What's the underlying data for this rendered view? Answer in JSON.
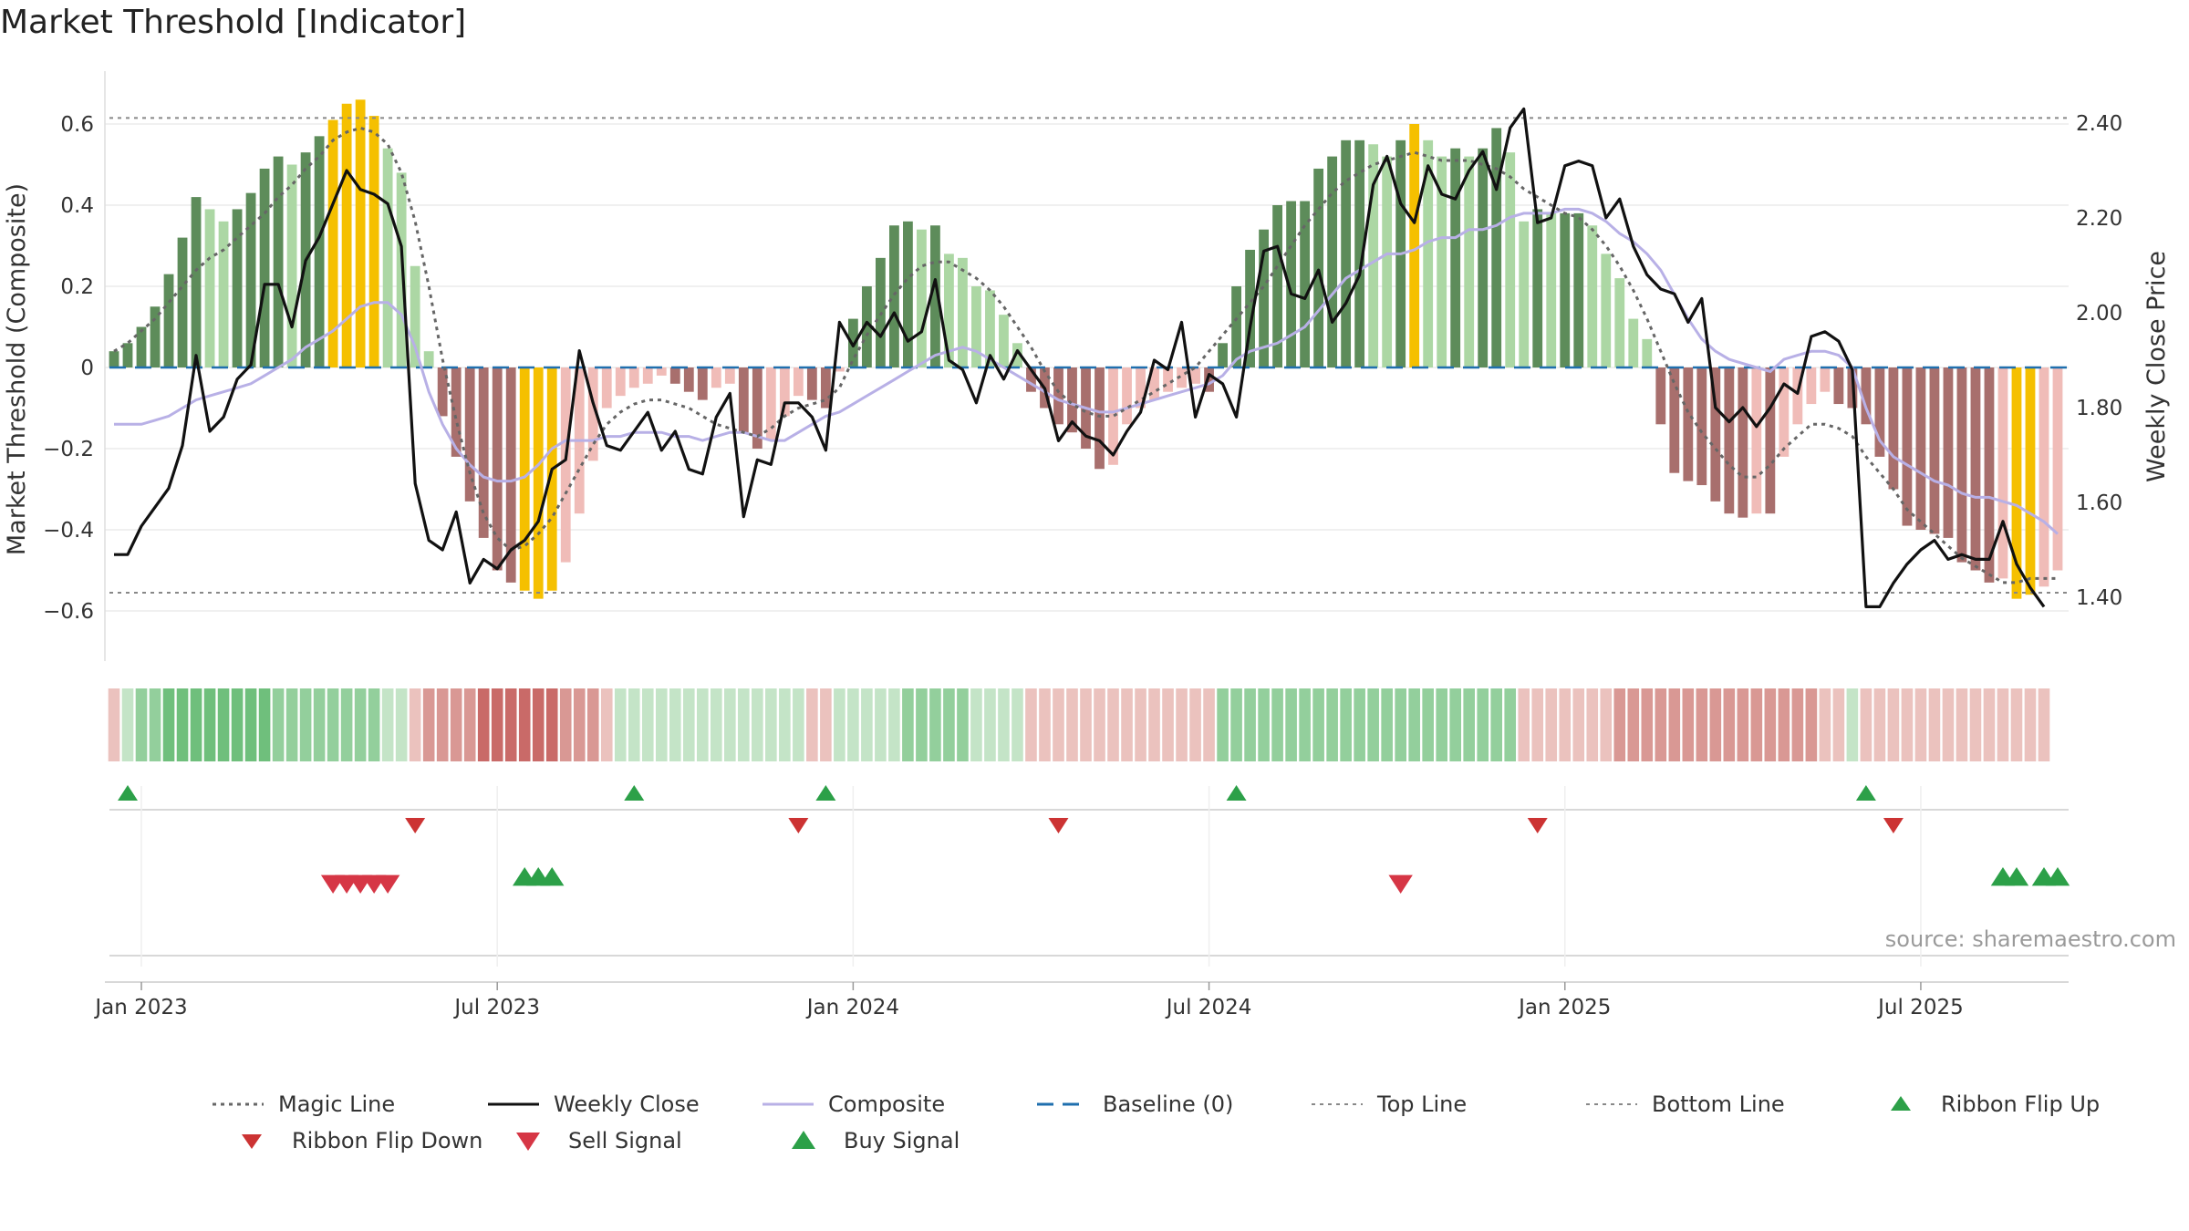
{
  "title": "Market Threshold [Indicator]",
  "source": "source: sharemaestro.com",
  "colors": {
    "up_dark": "#5d8c5a",
    "up_light": "#acd7a4",
    "down_dark": "#a86f6d",
    "down_light": "#f0bcb8",
    "extreme": "#f5c000",
    "weekly_close": "#111111",
    "composite": "#b8b0e6",
    "magic": "#666666",
    "baseline": "#1f6fae",
    "guide": "#888888",
    "signal_green": "#2ca048",
    "signal_red": "#d63645"
  },
  "legend": [
    {
      "label": "Magic Line",
      "icon": "dotted-line"
    },
    {
      "label": "Weekly Close",
      "icon": "solid-line"
    },
    {
      "label": "Composite",
      "icon": "solid-line-light"
    },
    {
      "label": "Baseline (0)",
      "icon": "dashed-line"
    },
    {
      "label": "Top Line",
      "icon": "dotted-line-light"
    },
    {
      "label": "Bottom Line",
      "icon": "dotted-line-light"
    },
    {
      "label": "Ribbon Flip Up",
      "icon": "triangle-up"
    },
    {
      "label": "Ribbon Flip Down",
      "icon": "triangle-down"
    },
    {
      "label": "Sell Signal",
      "icon": "triangle-down-large"
    },
    {
      "label": "Buy Signal",
      "icon": "triangle-up-large"
    }
  ],
  "chart_data": {
    "type": "bar",
    "title": "Market Threshold [Indicator]",
    "ylabel_left": "Market Threshold (Composite)",
    "ylabel_right": "Weekly Close Price",
    "yticks_left": [
      "0.6",
      "0.4",
      "0.2",
      "0",
      "−0.2",
      "−0.4",
      "−0.6"
    ],
    "yticks_left_values": [
      0.6,
      0.4,
      0.2,
      0,
      -0.2,
      -0.4,
      -0.6
    ],
    "yticks_right": [
      "2.40",
      "2.20",
      "2.00",
      "1.80",
      "1.60",
      "1.40"
    ],
    "yticks_right_values": [
      2.4,
      2.2,
      2.0,
      1.8,
      1.6,
      1.4
    ],
    "ylim_left": [
      -0.72,
      0.73
    ],
    "ylim_right": [
      1.308,
      2.455
    ],
    "xticks": [
      "Jan 2023",
      "Jul 2023",
      "Jan 2024",
      "Jul 2024",
      "Jan 2025",
      "Jul 2025"
    ],
    "xtick_weeks": [
      2,
      28,
      54,
      80,
      106,
      132
    ],
    "week_start": "2022-12-19",
    "top_line": 0.615,
    "bottom_line": -0.555,
    "composite_bars": [
      0.04,
      0.06,
      0.1,
      0.15,
      0.23,
      0.32,
      0.42,
      0.39,
      0.36,
      0.39,
      0.43,
      0.49,
      0.52,
      0.5,
      0.53,
      0.57,
      0.61,
      0.65,
      0.66,
      0.62,
      0.54,
      0.48,
      0.25,
      0.04,
      -0.12,
      -0.22,
      -0.33,
      -0.42,
      -0.5,
      -0.53,
      -0.55,
      -0.57,
      -0.55,
      -0.48,
      -0.36,
      -0.23,
      -0.1,
      -0.07,
      -0.05,
      -0.04,
      -0.02,
      -0.04,
      -0.06,
      -0.08,
      -0.05,
      -0.04,
      -0.16,
      -0.2,
      -0.18,
      -0.12,
      -0.07,
      -0.08,
      -0.1,
      -0.01,
      0.12,
      0.2,
      0.27,
      0.35,
      0.36,
      0.34,
      0.35,
      0.28,
      0.27,
      0.2,
      0.19,
      0.13,
      0.06,
      -0.06,
      -0.1,
      -0.14,
      -0.16,
      -0.2,
      -0.25,
      -0.24,
      -0.14,
      -0.1,
      -0.08,
      -0.06,
      -0.05,
      -0.04,
      -0.06,
      0.06,
      0.2,
      0.29,
      0.34,
      0.4,
      0.41,
      0.41,
      0.49,
      0.52,
      0.56,
      0.56,
      0.55,
      0.52,
      0.56,
      0.6,
      0.56,
      0.52,
      0.54,
      0.52,
      0.54,
      0.59,
      0.53,
      0.36,
      0.39,
      0.38,
      0.38,
      0.38,
      0.35,
      0.28,
      0.22,
      0.12,
      0.07,
      -0.14,
      -0.26,
      -0.28,
      -0.29,
      -0.33,
      -0.36,
      -0.37,
      -0.36,
      -0.36,
      -0.22,
      -0.14,
      -0.09,
      -0.06,
      -0.09,
      -0.1,
      -0.14,
      -0.22,
      -0.3,
      -0.39,
      -0.4,
      -0.41,
      -0.42,
      -0.48,
      -0.5,
      -0.53,
      -0.52,
      -0.57,
      -0.56,
      -0.54,
      -0.5
    ],
    "magic_line": [
      0.04,
      0.06,
      0.09,
      0.12,
      0.16,
      0.2,
      0.24,
      0.27,
      0.29,
      0.32,
      0.35,
      0.38,
      0.42,
      0.45,
      0.49,
      0.52,
      0.56,
      0.58,
      0.59,
      0.58,
      0.55,
      0.48,
      0.36,
      0.2,
      0.02,
      -0.13,
      -0.26,
      -0.36,
      -0.42,
      -0.45,
      -0.44,
      -0.41,
      -0.37,
      -0.31,
      -0.25,
      -0.19,
      -0.14,
      -0.11,
      -0.09,
      -0.08,
      -0.08,
      -0.09,
      -0.1,
      -0.12,
      -0.14,
      -0.15,
      -0.16,
      -0.17,
      -0.15,
      -0.12,
      -0.1,
      -0.09,
      -0.08,
      -0.05,
      0.02,
      0.08,
      0.13,
      0.18,
      0.22,
      0.25,
      0.26,
      0.26,
      0.24,
      0.22,
      0.19,
      0.15,
      0.1,
      0.05,
      -0.01,
      -0.06,
      -0.09,
      -0.11,
      -0.12,
      -0.12,
      -0.1,
      -0.08,
      -0.06,
      -0.04,
      -0.02,
      0.0,
      0.04,
      0.08,
      0.12,
      0.16,
      0.2,
      0.25,
      0.3,
      0.35,
      0.39,
      0.43,
      0.46,
      0.48,
      0.5,
      0.51,
      0.52,
      0.53,
      0.52,
      0.51,
      0.51,
      0.51,
      0.5,
      0.49,
      0.47,
      0.44,
      0.42,
      0.4,
      0.38,
      0.37,
      0.34,
      0.3,
      0.25,
      0.19,
      0.12,
      0.04,
      -0.04,
      -0.11,
      -0.16,
      -0.2,
      -0.24,
      -0.27,
      -0.27,
      -0.24,
      -0.2,
      -0.17,
      -0.14,
      -0.14,
      -0.15,
      -0.17,
      -0.22,
      -0.26,
      -0.3,
      -0.35,
      -0.38,
      -0.41,
      -0.44,
      -0.47,
      -0.49,
      -0.51,
      -0.53,
      -0.53,
      -0.52,
      -0.52,
      -0.52
    ],
    "composite_line": [
      -0.14,
      -0.14,
      -0.14,
      -0.13,
      -0.12,
      -0.1,
      -0.08,
      -0.07,
      -0.06,
      -0.05,
      -0.04,
      -0.02,
      0.0,
      0.02,
      0.05,
      0.07,
      0.09,
      0.12,
      0.15,
      0.16,
      0.16,
      0.13,
      0.05,
      -0.06,
      -0.14,
      -0.2,
      -0.24,
      -0.27,
      -0.28,
      -0.28,
      -0.27,
      -0.24,
      -0.2,
      -0.18,
      -0.18,
      -0.18,
      -0.17,
      -0.17,
      -0.16,
      -0.16,
      -0.16,
      -0.17,
      -0.17,
      -0.18,
      -0.17,
      -0.16,
      -0.16,
      -0.17,
      -0.18,
      -0.18,
      -0.16,
      -0.14,
      -0.12,
      -0.11,
      -0.09,
      -0.07,
      -0.05,
      -0.03,
      -0.01,
      0.01,
      0.03,
      0.04,
      0.05,
      0.04,
      0.02,
      0.0,
      -0.02,
      -0.04,
      -0.06,
      -0.08,
      -0.09,
      -0.1,
      -0.11,
      -0.11,
      -0.1,
      -0.09,
      -0.08,
      -0.07,
      -0.06,
      -0.05,
      -0.04,
      -0.02,
      0.02,
      0.04,
      0.05,
      0.06,
      0.08,
      0.1,
      0.14,
      0.18,
      0.22,
      0.24,
      0.26,
      0.28,
      0.28,
      0.29,
      0.31,
      0.32,
      0.32,
      0.34,
      0.34,
      0.35,
      0.37,
      0.38,
      0.38,
      0.38,
      0.39,
      0.39,
      0.38,
      0.36,
      0.33,
      0.31,
      0.28,
      0.24,
      0.18,
      0.12,
      0.07,
      0.04,
      0.02,
      0.01,
      0.0,
      -0.01,
      0.02,
      0.03,
      0.04,
      0.04,
      0.03,
      0.0,
      -0.1,
      -0.18,
      -0.22,
      -0.24,
      -0.26,
      -0.28,
      -0.29,
      -0.31,
      -0.32,
      -0.32,
      -0.33,
      -0.34,
      -0.36,
      -0.38,
      -0.41
    ],
    "weekly_close": [
      1.49,
      1.49,
      1.55,
      1.59,
      1.63,
      1.72,
      1.91,
      1.75,
      1.78,
      1.86,
      1.89,
      2.06,
      2.06,
      1.97,
      2.11,
      2.16,
      2.23,
      2.3,
      2.26,
      2.25,
      2.23,
      2.14,
      1.64,
      1.52,
      1.5,
      1.58,
      1.43,
      1.48,
      1.46,
      1.5,
      1.52,
      1.56,
      1.67,
      1.69,
      1.92,
      1.81,
      1.72,
      1.71,
      1.75,
      1.79,
      1.71,
      1.75,
      1.67,
      1.66,
      1.78,
      1.83,
      1.57,
      1.69,
      1.68,
      1.81,
      1.81,
      1.78,
      1.71,
      1.98,
      1.93,
      1.98,
      1.95,
      2.0,
      1.94,
      1.96,
      2.07,
      1.9,
      1.88,
      1.81,
      1.91,
      1.86,
      1.92,
      1.88,
      1.84,
      1.73,
      1.77,
      1.74,
      1.73,
      1.7,
      1.75,
      1.79,
      1.9,
      1.88,
      1.98,
      1.78,
      1.87,
      1.85,
      1.78,
      1.97,
      2.13,
      2.14,
      2.04,
      2.03,
      2.09,
      1.98,
      2.02,
      2.08,
      2.27,
      2.33,
      2.23,
      2.19,
      2.31,
      2.25,
      2.24,
      2.3,
      2.34,
      2.26,
      2.39,
      2.43,
      2.19,
      2.2,
      2.31,
      2.32,
      2.31,
      2.2,
      2.24,
      2.14,
      2.08,
      2.05,
      2.04,
      1.98,
      2.03,
      1.8,
      1.77,
      1.8,
      1.76,
      1.8,
      1.85,
      1.83,
      1.95,
      1.96,
      1.94,
      1.88,
      1.38,
      1.38,
      1.43,
      1.47,
      1.5,
      1.52,
      1.48,
      1.49,
      1.48,
      1.48,
      1.56,
      1.47,
      1.42,
      1.38
    ],
    "ribbon": [
      -1,
      1,
      2,
      2,
      3,
      3,
      3,
      3,
      3,
      3,
      3,
      3,
      2,
      2,
      2,
      2,
      2,
      2,
      2,
      2,
      1,
      1,
      -1,
      -2,
      -2,
      -2,
      -2,
      -3,
      -3,
      -3,
      -3,
      -3,
      -3,
      -2,
      -2,
      -2,
      -1,
      1,
      1,
      1,
      1,
      1,
      1,
      1,
      1,
      1,
      1,
      1,
      1,
      1,
      1,
      -1,
      -1,
      1,
      1,
      1,
      1,
      1,
      2,
      2,
      2,
      2,
      2,
      1,
      1,
      1,
      1,
      -1,
      -1,
      -1,
      -1,
      -1,
      -1,
      -1,
      -1,
      -1,
      -1,
      -1,
      -1,
      -1,
      -1,
      2,
      2,
      2,
      2,
      2,
      2,
      2,
      2,
      2,
      2,
      2,
      2,
      2,
      2,
      2,
      2,
      2,
      2,
      2,
      2,
      2,
      2,
      -1,
      -1,
      -1,
      -1,
      -1,
      -1,
      -1,
      -2,
      -2,
      -2,
      -2,
      -2,
      -2,
      -2,
      -2,
      -2,
      -2,
      -2,
      -2,
      -2,
      -2,
      -2,
      -1,
      -1,
      1,
      -1,
      -1,
      -1,
      -1,
      -1,
      -1,
      -1,
      -1,
      -1,
      -1,
      -1,
      -1,
      -1,
      -1
    ],
    "ribbon_flip_up": [
      1,
      38,
      52,
      82,
      128
    ],
    "ribbon_flip_down": [
      22,
      50,
      69,
      104,
      130
    ],
    "sell_signal": [
      16,
      17,
      18,
      19,
      20,
      94
    ],
    "buy_signal": [
      30,
      31,
      32,
      138,
      139,
      141,
      142
    ]
  }
}
